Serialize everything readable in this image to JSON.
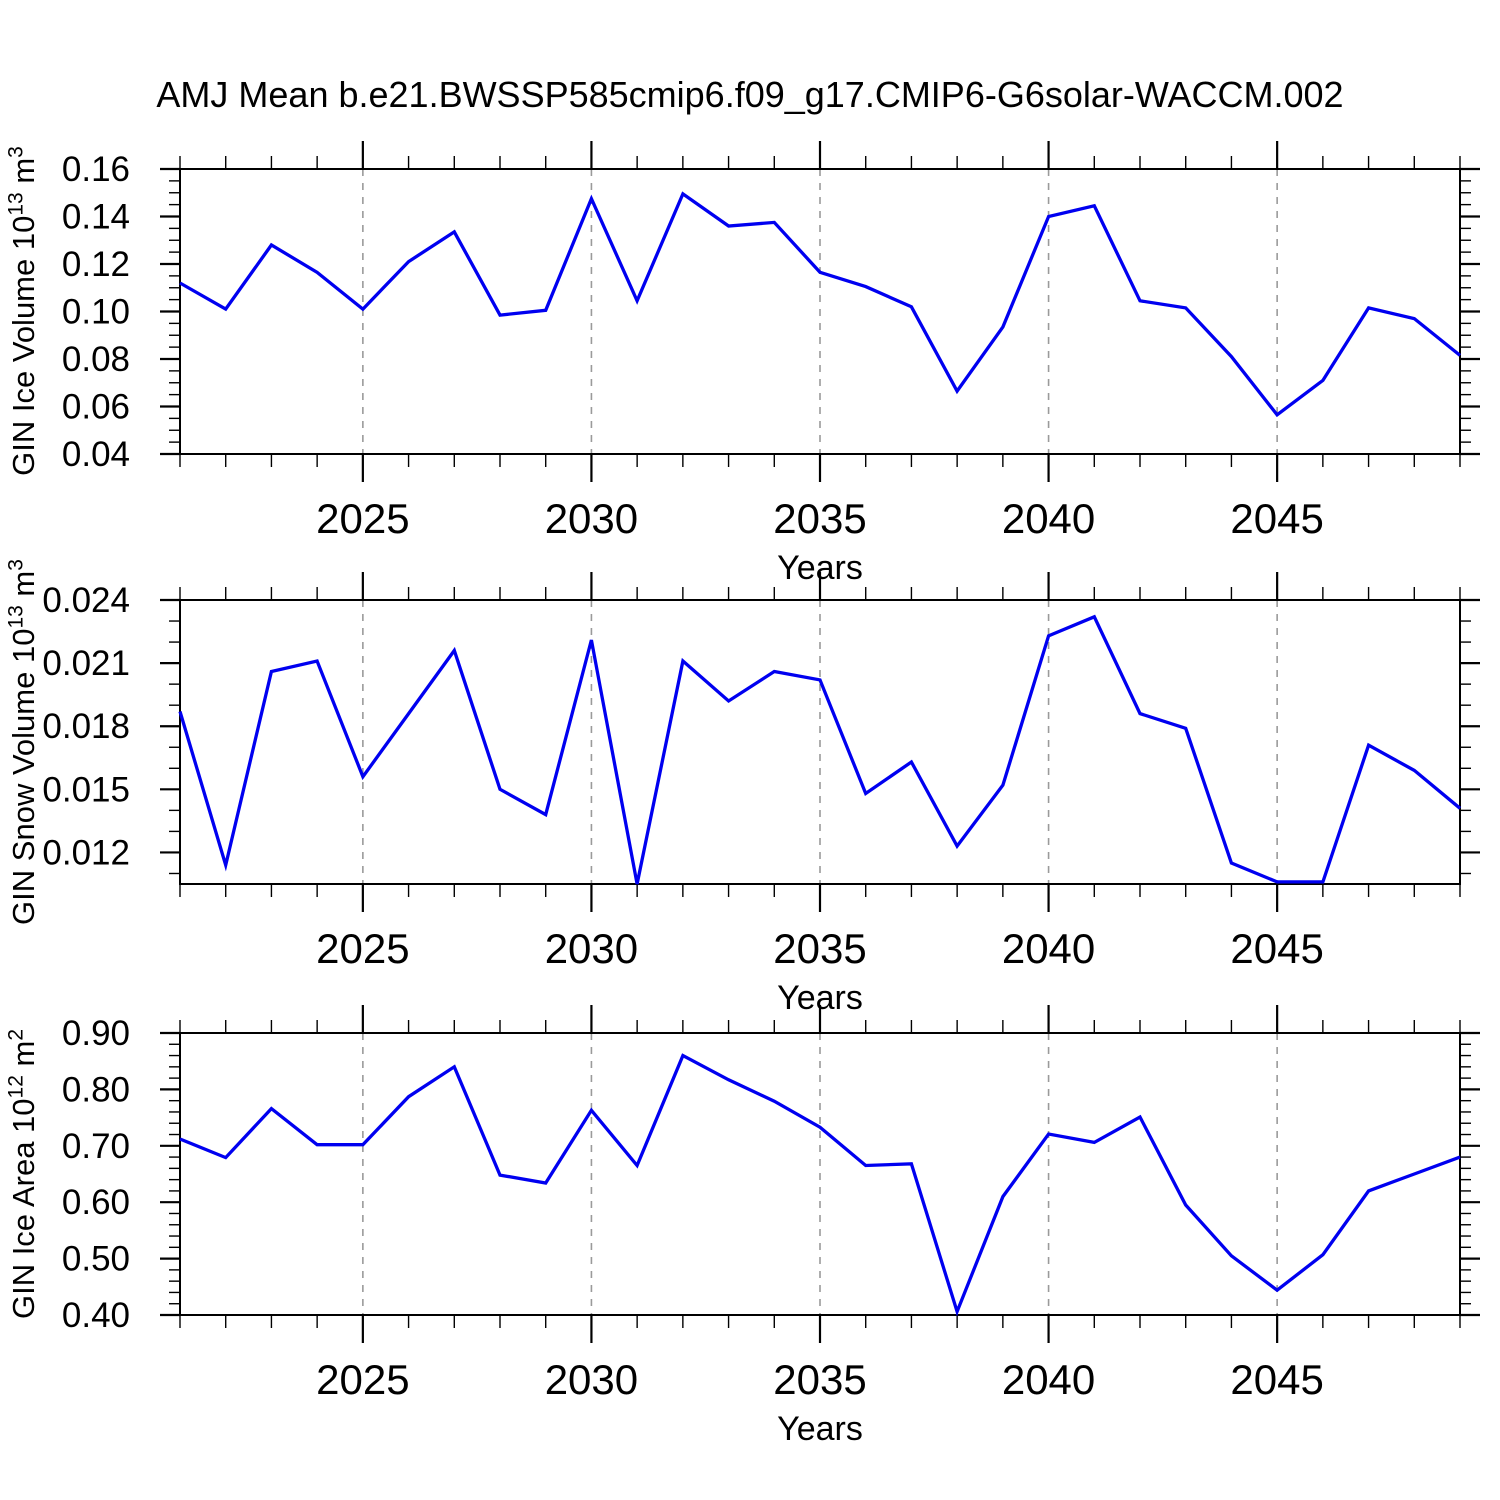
{
  "title": "AMJ Mean b.e21.BWSSP585cmip6.f09_g17.CMIP6-G6solar-WACCM.002",
  "xlabel": "Years",
  "style": {
    "line_color": "#0000f0",
    "grid_color": "#9a9a9a",
    "axis_color": "#000000",
    "background": "#ffffff"
  },
  "panels": [
    {
      "ylabel": {
        "base": "GIN Ice Volume 10",
        "exp": "13",
        "unit": " m",
        "unit_exp": "3"
      }
    },
    {
      "ylabel": {
        "base": "GIN Snow Volume 10",
        "exp": "13",
        "unit": " m",
        "unit_exp": "3"
      }
    },
    {
      "ylabel": {
        "base": "GIN Ice Area 10",
        "exp": "12",
        "unit": " m",
        "unit_exp": "2"
      }
    }
  ],
  "chart_data": [
    {
      "type": "line",
      "title": "AMJ Mean b.e21.BWSSP585cmip6.f09_g17.CMIP6-G6solar-WACCM.002",
      "xlabel": "Years",
      "ylabel": "GIN Ice Volume 10^13 m^3",
      "x": [
        2021,
        2022,
        2023,
        2024,
        2025,
        2026,
        2027,
        2028,
        2029,
        2030,
        2031,
        2032,
        2033,
        2034,
        2035,
        2036,
        2037,
        2038,
        2039,
        2040,
        2041,
        2042,
        2043,
        2044,
        2045,
        2046,
        2047,
        2048,
        2049
      ],
      "values": [
        0.112,
        0.101,
        0.128,
        0.1165,
        0.101,
        0.121,
        0.1335,
        0.0985,
        0.1005,
        0.1475,
        0.1045,
        0.1495,
        0.136,
        0.1375,
        0.1165,
        0.1105,
        0.102,
        0.0665,
        0.0935,
        0.14,
        0.1445,
        0.1045,
        0.1015,
        0.081,
        0.0565,
        0.071,
        0.1015,
        0.097,
        0.0815
      ],
      "xlim": [
        2021,
        2049
      ],
      "ylim": [
        0.04,
        0.16
      ],
      "xticks": [
        2025,
        2030,
        2035,
        2040,
        2045
      ],
      "yticks": [
        0.16,
        0.14,
        0.12,
        0.1,
        0.08,
        0.06,
        0.04
      ],
      "ytick_labels": [
        "0.16",
        "0.14",
        "0.12",
        "0.10",
        "0.08",
        "0.06",
        "0.04"
      ],
      "minor_x_step": 1,
      "minor_y_step": 0.005,
      "grid": "vertical-dashed-at-major-xticks",
      "legend": "none"
    },
    {
      "type": "line",
      "title": "",
      "xlabel": "Years",
      "ylabel": "GIN Snow Volume 10^13 m^3",
      "x": [
        2021,
        2022,
        2023,
        2024,
        2025,
        2026,
        2027,
        2028,
        2029,
        2030,
        2031,
        2032,
        2033,
        2034,
        2035,
        2036,
        2037,
        2038,
        2039,
        2040,
        2041,
        2042,
        2043,
        2044,
        2045,
        2046,
        2047,
        2048,
        2049
      ],
      "values": [
        0.0187,
        0.0114,
        0.0206,
        0.0211,
        0.0156,
        0.0186,
        0.0216,
        0.015,
        0.0138,
        0.0221,
        0.0105,
        0.0211,
        0.0192,
        0.0206,
        0.0202,
        0.0148,
        0.0163,
        0.0123,
        0.0152,
        0.0223,
        0.0232,
        0.0186,
        0.0179,
        0.0115,
        0.0106,
        0.0106,
        0.0171,
        0.0159,
        0.0141
      ],
      "xlim": [
        2021,
        2049
      ],
      "ylim": [
        0.0105,
        0.024
      ],
      "xticks": [
        2025,
        2030,
        2035,
        2040,
        2045
      ],
      "yticks": [
        0.024,
        0.021,
        0.018,
        0.015,
        0.012
      ],
      "ytick_labels": [
        "0.024",
        "0.021",
        "0.018",
        "0.015",
        "0.012"
      ],
      "minor_x_step": 1,
      "minor_y_step": 0.001,
      "grid": "vertical-dashed-at-major-xticks",
      "legend": "none"
    },
    {
      "type": "line",
      "title": "",
      "xlabel": "Years",
      "ylabel": "GIN Ice Area 10^12 m^2",
      "x": [
        2021,
        2022,
        2023,
        2024,
        2025,
        2026,
        2027,
        2028,
        2029,
        2030,
        2031,
        2032,
        2033,
        2034,
        2035,
        2036,
        2037,
        2038,
        2039,
        2040,
        2041,
        2042,
        2043,
        2044,
        2045,
        2046,
        2047,
        2048,
        2049
      ],
      "values": [
        0.712,
        0.679,
        0.766,
        0.702,
        0.702,
        0.787,
        0.84,
        0.648,
        0.634,
        0.763,
        0.665,
        0.86,
        0.817,
        0.779,
        0.733,
        0.665,
        0.668,
        0.406,
        0.61,
        0.721,
        0.706,
        0.751,
        0.595,
        0.505,
        0.444,
        0.507,
        0.62,
        0.65,
        0.68
      ],
      "xlim": [
        2021,
        2049
      ],
      "ylim": [
        0.4,
        0.9
      ],
      "xticks": [
        2025,
        2030,
        2035,
        2040,
        2045
      ],
      "yticks": [
        0.9,
        0.8,
        0.7,
        0.6,
        0.5,
        0.4
      ],
      "ytick_labels": [
        "0.90",
        "0.80",
        "0.70",
        "0.60",
        "0.50",
        "0.40"
      ],
      "minor_x_step": 1,
      "minor_y_step": 0.02,
      "grid": "vertical-dashed-at-major-xticks",
      "legend": "none"
    }
  ]
}
